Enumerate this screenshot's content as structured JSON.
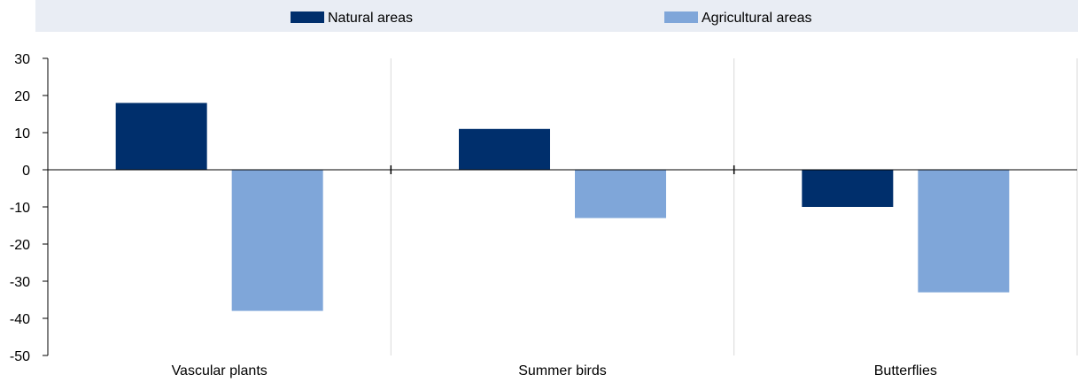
{
  "chart_data": {
    "type": "bar",
    "categories": [
      "Vascular plants",
      "Summer birds",
      "Butterflies"
    ],
    "series": [
      {
        "name": "Natural areas",
        "values": [
          18,
          11,
          -10
        ],
        "color": "#002f6c"
      },
      {
        "name": "Agricultural areas",
        "values": [
          -38,
          -13,
          -33
        ],
        "color": "#7fa6d9"
      }
    ],
    "ylim": [
      -50,
      30
    ],
    "yticks": [
      "30",
      "20",
      "10",
      "0",
      "-10",
      "-20",
      "-30",
      "-40",
      "-50"
    ],
    "grid": "vertical separators between categories",
    "legend_position": "top"
  }
}
